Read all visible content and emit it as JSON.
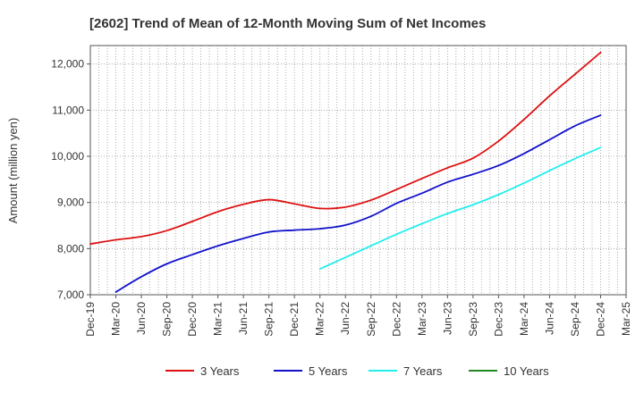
{
  "chart_data": {
    "type": "line",
    "title": "[2602]  Trend of Mean of 12-Month Moving Sum of Net Incomes",
    "ylabel": "Amount (million yen)",
    "xlabel": "",
    "ylim": [
      7000,
      12400
    ],
    "yticks": [
      7000,
      8000,
      9000,
      10000,
      11000,
      12000
    ],
    "ytick_labels": [
      "7,000",
      "8,000",
      "9,000",
      "10,000",
      "11,000",
      "12,000"
    ],
    "xlim": [
      "Dec-19",
      "Mar-25"
    ],
    "xticks": [
      "Dec-19",
      "Mar-20",
      "Jun-20",
      "Sep-20",
      "Dec-20",
      "Mar-21",
      "Jun-21",
      "Sep-21",
      "Dec-21",
      "Mar-22",
      "Jun-22",
      "Sep-22",
      "Dec-22",
      "Mar-23",
      "Jun-23",
      "Sep-23",
      "Dec-23",
      "Mar-24",
      "Jun-24",
      "Sep-24",
      "Dec-24",
      "Mar-25"
    ],
    "grid": true,
    "legend_position": "bottom",
    "series": [
      {
        "name": "3 Years",
        "color": "#dd1111",
        "points": [
          [
            "Dec-19",
            8100
          ],
          [
            "Mar-20",
            8190
          ],
          [
            "Jun-20",
            8260
          ],
          [
            "Sep-20",
            8390
          ],
          [
            "Dec-20",
            8590
          ],
          [
            "Mar-21",
            8800
          ],
          [
            "Jun-21",
            8960
          ],
          [
            "Sep-21",
            9060
          ],
          [
            "Dec-21",
            8970
          ],
          [
            "Mar-22",
            8870
          ],
          [
            "Jun-22",
            8900
          ],
          [
            "Sep-22",
            9050
          ],
          [
            "Dec-22",
            9280
          ],
          [
            "Mar-23",
            9520
          ],
          [
            "Jun-23",
            9750
          ],
          [
            "Sep-23",
            9960
          ],
          [
            "Dec-23",
            10330
          ],
          [
            "Mar-24",
            10800
          ],
          [
            "Jun-24",
            11310
          ],
          [
            "Sep-24",
            11780
          ],
          [
            "Dec-24",
            12250
          ]
        ]
      },
      {
        "name": "5 Years",
        "color": "#1111cc",
        "points": [
          [
            "Mar-20",
            7060
          ],
          [
            "Jun-20",
            7390
          ],
          [
            "Sep-20",
            7670
          ],
          [
            "Dec-20",
            7870
          ],
          [
            "Mar-21",
            8060
          ],
          [
            "Jun-21",
            8220
          ],
          [
            "Sep-21",
            8360
          ],
          [
            "Dec-21",
            8400
          ],
          [
            "Mar-22",
            8430
          ],
          [
            "Jun-22",
            8510
          ],
          [
            "Sep-22",
            8700
          ],
          [
            "Dec-22",
            8980
          ],
          [
            "Mar-23",
            9200
          ],
          [
            "Jun-23",
            9440
          ],
          [
            "Sep-23",
            9610
          ],
          [
            "Dec-23",
            9800
          ],
          [
            "Mar-24",
            10060
          ],
          [
            "Jun-24",
            10360
          ],
          [
            "Sep-24",
            10660
          ],
          [
            "Dec-24",
            10890
          ]
        ]
      },
      {
        "name": "7 Years",
        "color": "#22eeee",
        "points": [
          [
            "Mar-22",
            7560
          ],
          [
            "Jun-22",
            7810
          ],
          [
            "Sep-22",
            8060
          ],
          [
            "Dec-22",
            8310
          ],
          [
            "Mar-23",
            8540
          ],
          [
            "Jun-23",
            8760
          ],
          [
            "Sep-23",
            8950
          ],
          [
            "Dec-23",
            9170
          ],
          [
            "Mar-24",
            9420
          ],
          [
            "Jun-24",
            9690
          ],
          [
            "Sep-24",
            9950
          ],
          [
            "Dec-24",
            10190
          ]
        ]
      },
      {
        "name": "10 Years",
        "color": "#228822",
        "points": []
      }
    ]
  }
}
